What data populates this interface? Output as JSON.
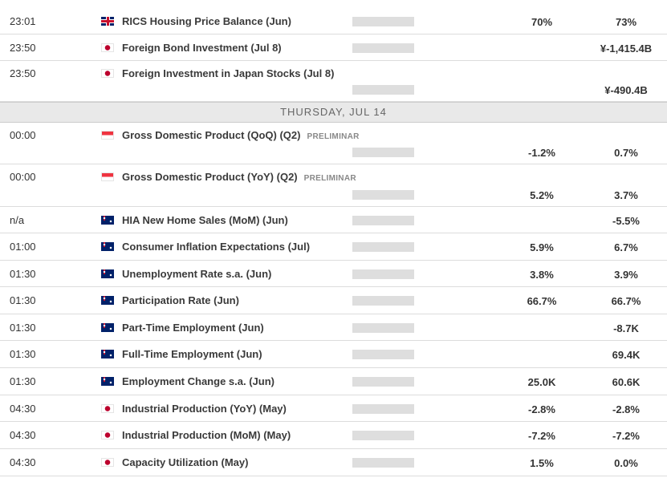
{
  "day_header": "THURSDAY, JUL 14",
  "rows": [
    {
      "time": "23:01",
      "event": "RICS Housing Price Balance (Jun)",
      "actual": "70%",
      "previous": "73%"
    },
    {
      "time": "23:50",
      "event": "Foreign Bond Investment (Jul 8)",
      "previous": "¥-1,415.4B"
    },
    {
      "time": "23:50",
      "event": "Foreign Investment in Japan Stocks (Jul 8)",
      "previous": "¥-490.4B"
    },
    {
      "time": "00:00",
      "event": "Gross Domestic Product (QoQ) (Q2)",
      "tag": "PRELIMINAR",
      "actual": "-1.2%",
      "previous": "0.7%"
    },
    {
      "time": "00:00",
      "event": "Gross Domestic Product (YoY) (Q2)",
      "tag": "PRELIMINAR",
      "actual": "5.2%",
      "previous": "3.7%"
    },
    {
      "time": "n/a",
      "event": "HIA New Home Sales (MoM) (Jun)",
      "previous": "-5.5%"
    },
    {
      "time": "01:00",
      "event": "Consumer Inflation Expectations (Jul)",
      "actual": "5.9%",
      "previous": "6.7%"
    },
    {
      "time": "01:30",
      "event": "Unemployment Rate s.a. (Jun)",
      "actual": "3.8%",
      "previous": "3.9%"
    },
    {
      "time": "01:30",
      "event": "Participation Rate (Jun)",
      "actual": "66.7%",
      "previous": "66.7%"
    },
    {
      "time": "01:30",
      "event": "Part-Time Employment (Jun)",
      "previous": "-8.7K"
    },
    {
      "time": "01:30",
      "event": "Full-Time Employment (Jun)",
      "previous": "69.4K"
    },
    {
      "time": "01:30",
      "event": "Employment Change s.a. (Jun)",
      "actual": "25.0K",
      "previous": "60.6K"
    },
    {
      "time": "04:30",
      "event": "Industrial Production (YoY) (May)",
      "actual": "-2.8%",
      "previous": "-2.8%"
    },
    {
      "time": "04:30",
      "event": "Industrial Production (MoM) (May)",
      "actual": "-7.2%",
      "previous": "-7.2%"
    },
    {
      "time": "04:30",
      "event": "Capacity Utilization (May)",
      "actual": "1.5%",
      "previous": "0.0%"
    }
  ]
}
